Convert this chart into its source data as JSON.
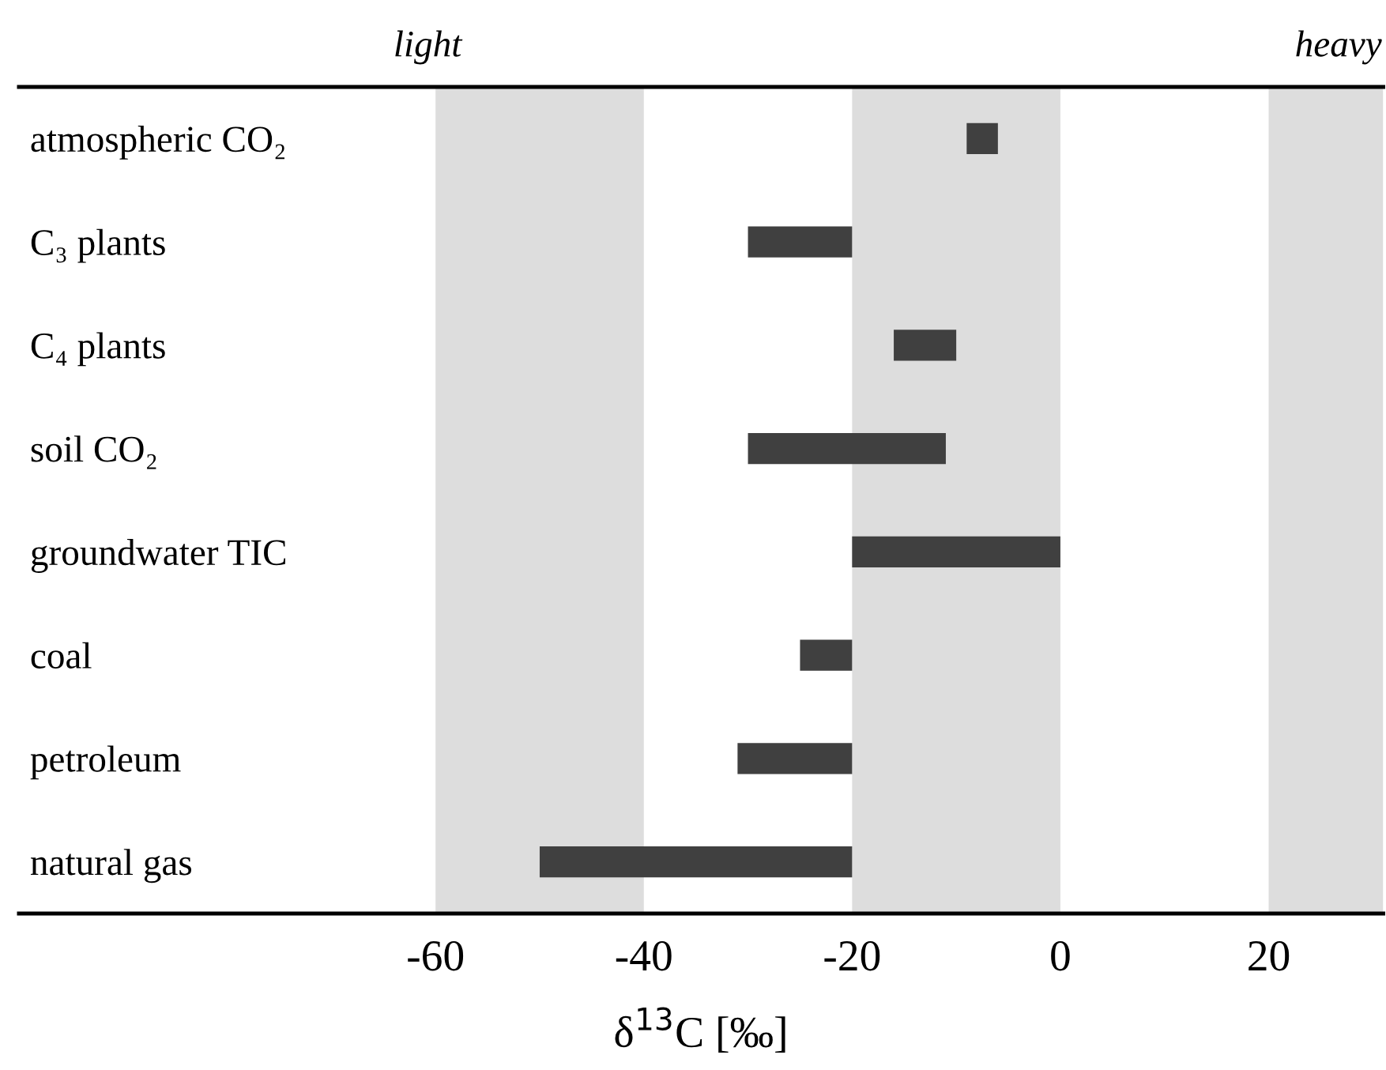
{
  "chart_data": {
    "type": "bar",
    "orientation": "horizontal",
    "categories": [
      "atmospheric CO₂",
      "C₃ plants",
      "C₄ plants",
      "soil CO₂",
      "groundwater TIC",
      "coal",
      "petroleum",
      "natural gas"
    ],
    "base": [
      -9,
      -30,
      -16,
      -30,
      -20,
      -25,
      -31,
      -50
    ],
    "values": [
      3,
      10,
      6,
      19,
      20,
      5,
      11,
      30
    ],
    "color": "#404040",
    "xlabel": "δ$^{13}$C [‰]",
    "xlim": [
      -100,
      31
    ],
    "xticks": [
      -60,
      -40,
      -20,
      0,
      20
    ],
    "bands": [
      {
        "axis": "x",
        "from": -60,
        "to": -40,
        "color": "#dddddd"
      },
      {
        "axis": "x",
        "from": -20,
        "to": 0,
        "color": "#dddddd"
      },
      {
        "axis": "x",
        "from": 20,
        "to": 31,
        "color": "#dddddd"
      }
    ],
    "annotations": [
      "light",
      "heavy"
    ],
    "grid": false,
    "legend": false
  }
}
